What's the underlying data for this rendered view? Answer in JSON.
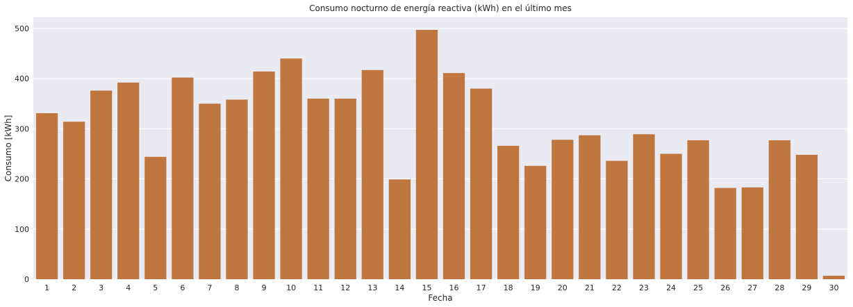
{
  "chart_data": {
    "type": "bar",
    "title": "Consumo nocturno de energía reactiva (kWh) en el último mes",
    "xlabel": "Fecha",
    "ylabel": "Consumo [kWh]",
    "categories": [
      "1",
      "2",
      "3",
      "4",
      "5",
      "6",
      "7",
      "8",
      "9",
      "10",
      "11",
      "12",
      "13",
      "14",
      "15",
      "16",
      "17",
      "18",
      "19",
      "20",
      "21",
      "22",
      "23",
      "24",
      "25",
      "26",
      "27",
      "28",
      "29",
      "30"
    ],
    "values": [
      331,
      314,
      376,
      392,
      244,
      402,
      350,
      358,
      414,
      440,
      360,
      360,
      417,
      199,
      497,
      411,
      380,
      266,
      226,
      278,
      287,
      236,
      289,
      250,
      277,
      182,
      183,
      277,
      248,
      7
    ],
    "yticks": [
      0,
      100,
      200,
      300,
      400,
      500
    ],
    "ylim": [
      0,
      522
    ],
    "grid": true,
    "bar_color": "#c0773f",
    "background_color": "#eaeaf2",
    "grid_color": "#ffffff"
  }
}
